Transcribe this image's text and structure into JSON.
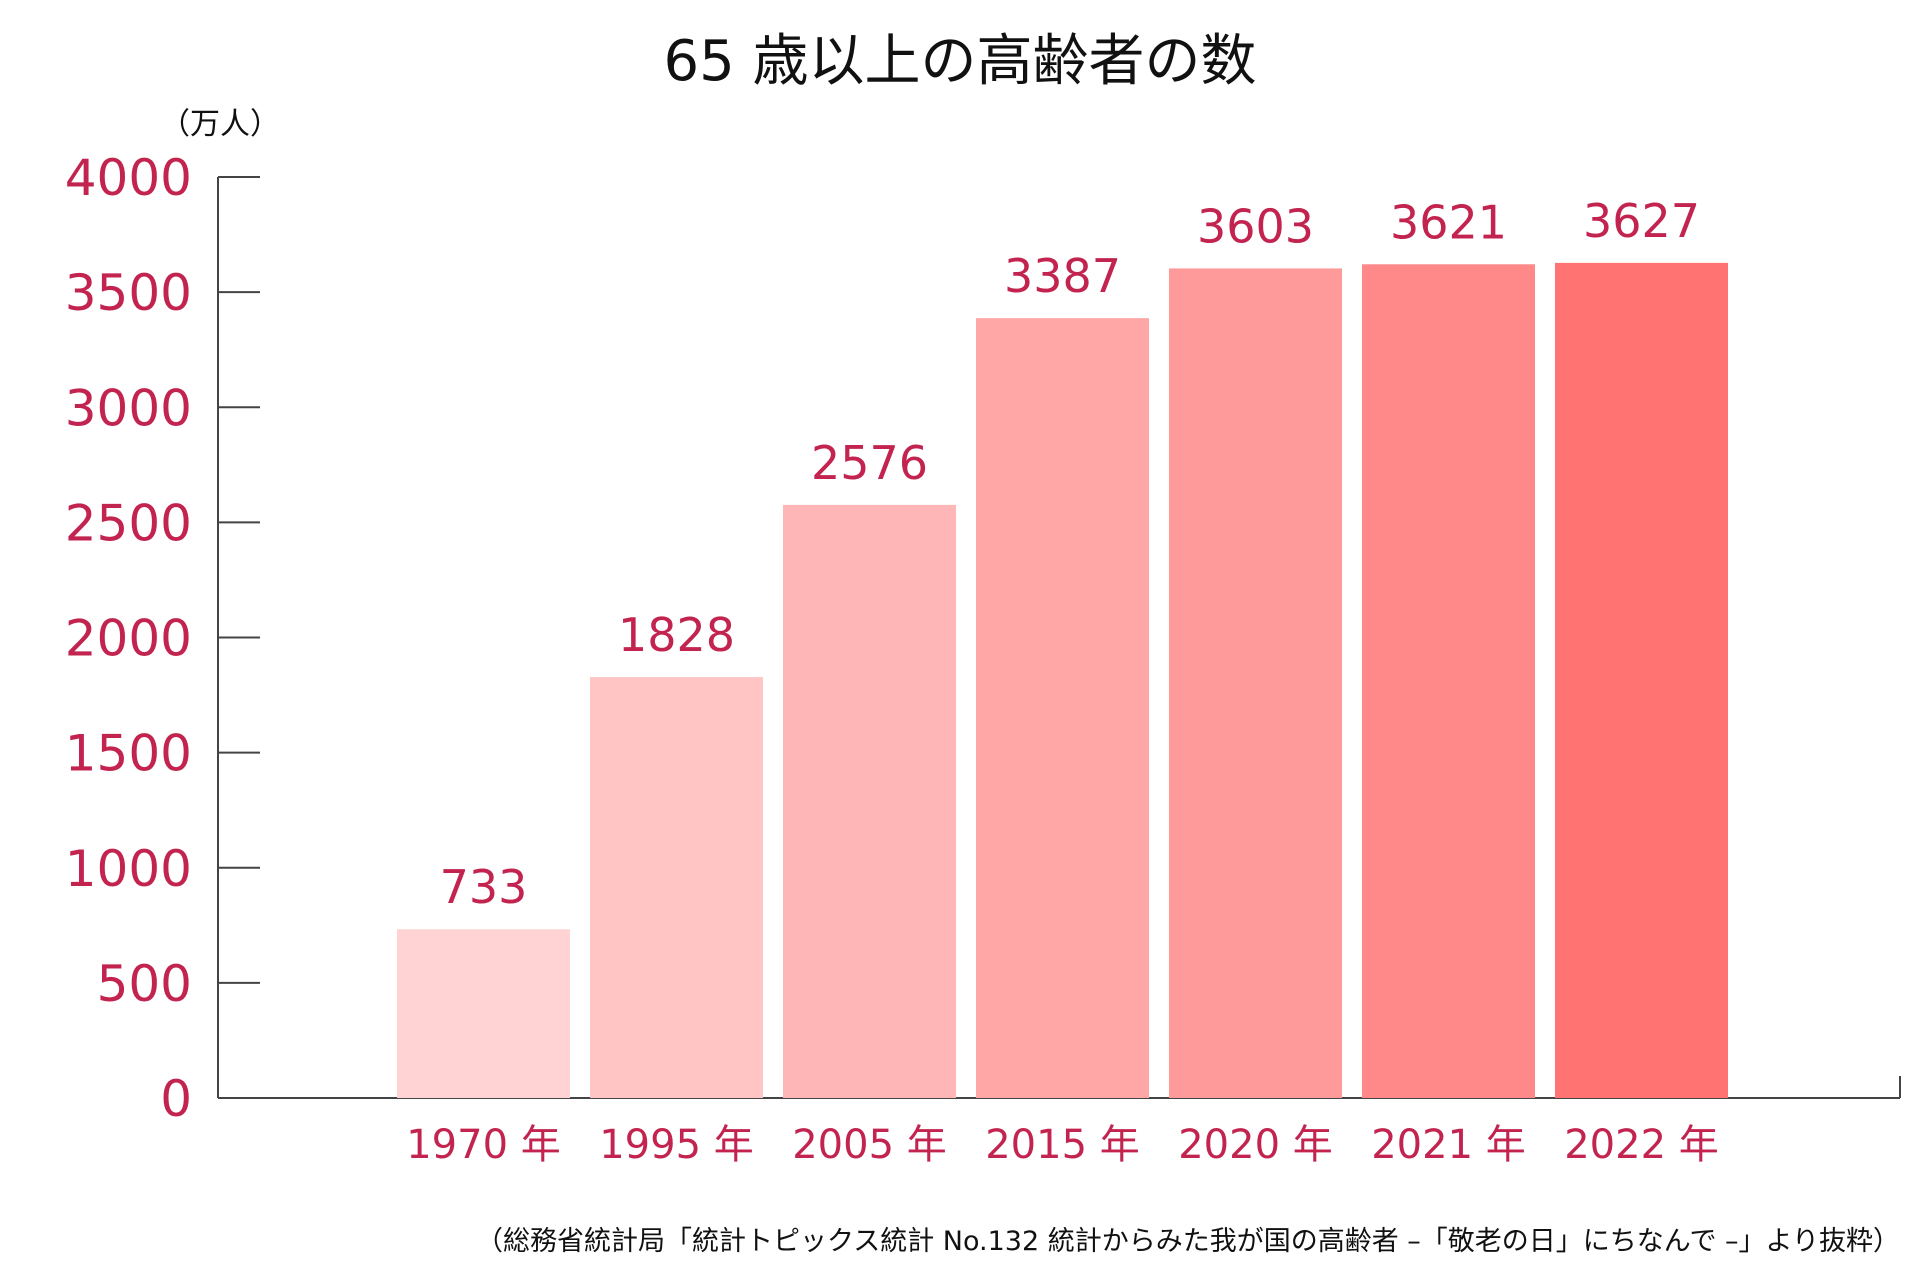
{
  "chart_data": {
    "type": "bar",
    "title": "65 歳以上の高齢者の数",
    "unit_label": "（万人）",
    "categories": [
      "1970 年",
      "1995 年",
      "2005 年",
      "2015 年",
      "2020 年",
      "2021 年",
      "2022 年"
    ],
    "values": [
      733,
      1828,
      2576,
      3387,
      3603,
      3621,
      3627
    ],
    "value_labels": [
      "733",
      "1828",
      "2576",
      "3387",
      "3603",
      "3621",
      "3627"
    ],
    "ylim": [
      0,
      4000
    ],
    "yticks": [
      0,
      500,
      1000,
      1500,
      2000,
      2500,
      3000,
      3500,
      4000
    ],
    "ytick_labels": [
      "0",
      "500",
      "1000",
      "1500",
      "2000",
      "2500",
      "3000",
      "3500",
      "4000"
    ],
    "bar_colors": [
      "#FFD3D3",
      "#FFC5C5",
      "#FFB6B6",
      "#FFA7A7",
      "#FF9A9A",
      "#FF8888",
      "#FF7373"
    ],
    "label_color": "#C2244F",
    "grid": false,
    "source": "（総務省統計局「統計トピックス統計 No.132 統計からみた我が国の高齢者 –「敬老の日」にちなんで –」より抜粋）"
  }
}
